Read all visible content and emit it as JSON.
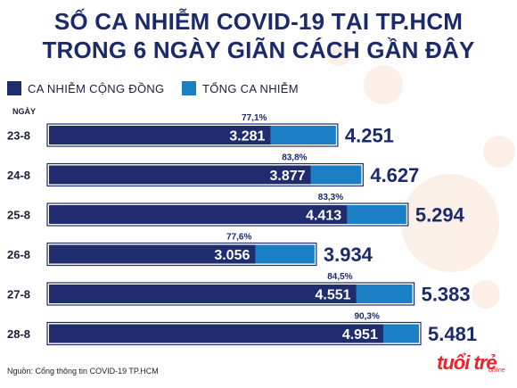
{
  "title_lines": [
    "SỐ CA NHIỄM COVID-19 TẠI TP.HCM",
    "TRONG 6 NGÀY GIÃN CÁCH GẦN ĐÂY"
  ],
  "legend": [
    {
      "label": "CA NHIỄM CỘNG ĐỒNG",
      "color": "#1f2d6e"
    },
    {
      "label": "TỔNG CA NHIỄM",
      "color": "#1a7fc4"
    }
  ],
  "source": "Nguồn: Cổng thông tin COVID-19 TP.HCM",
  "logo": {
    "main": "tuổi trẻ",
    "sub": "online"
  },
  "chart_data": {
    "type": "bar",
    "orientation": "horizontal",
    "category_axis_label": "NGÀY",
    "categories": [
      "23-8",
      "24-8",
      "25-8",
      "26-8",
      "27-8",
      "28-8"
    ],
    "series": [
      {
        "name": "CA NHIỄM CỘNG ĐỒNG",
        "values": [
          3281,
          3877,
          4413,
          3056,
          4551,
          4951
        ],
        "labels": [
          "3.281",
          "3.877",
          "4.413",
          "3.056",
          "4.551",
          "4.951"
        ],
        "color": "#1f2d6e"
      },
      {
        "name": "TỔNG CA NHIỄM",
        "values": [
          4251,
          4627,
          5294,
          3934,
          5383,
          5481
        ],
        "labels": [
          "4.251",
          "4.627",
          "5.294",
          "3.934",
          "5.383",
          "5.481"
        ],
        "color": "#1a7fc4"
      }
    ],
    "percent_labels": [
      "77,1%",
      "83,8%",
      "83,3%",
      "77,6%",
      "84,5%",
      "90,3%"
    ],
    "xlim": [
      0,
      5481
    ],
    "grid": false,
    "legend_position": "top-left"
  }
}
